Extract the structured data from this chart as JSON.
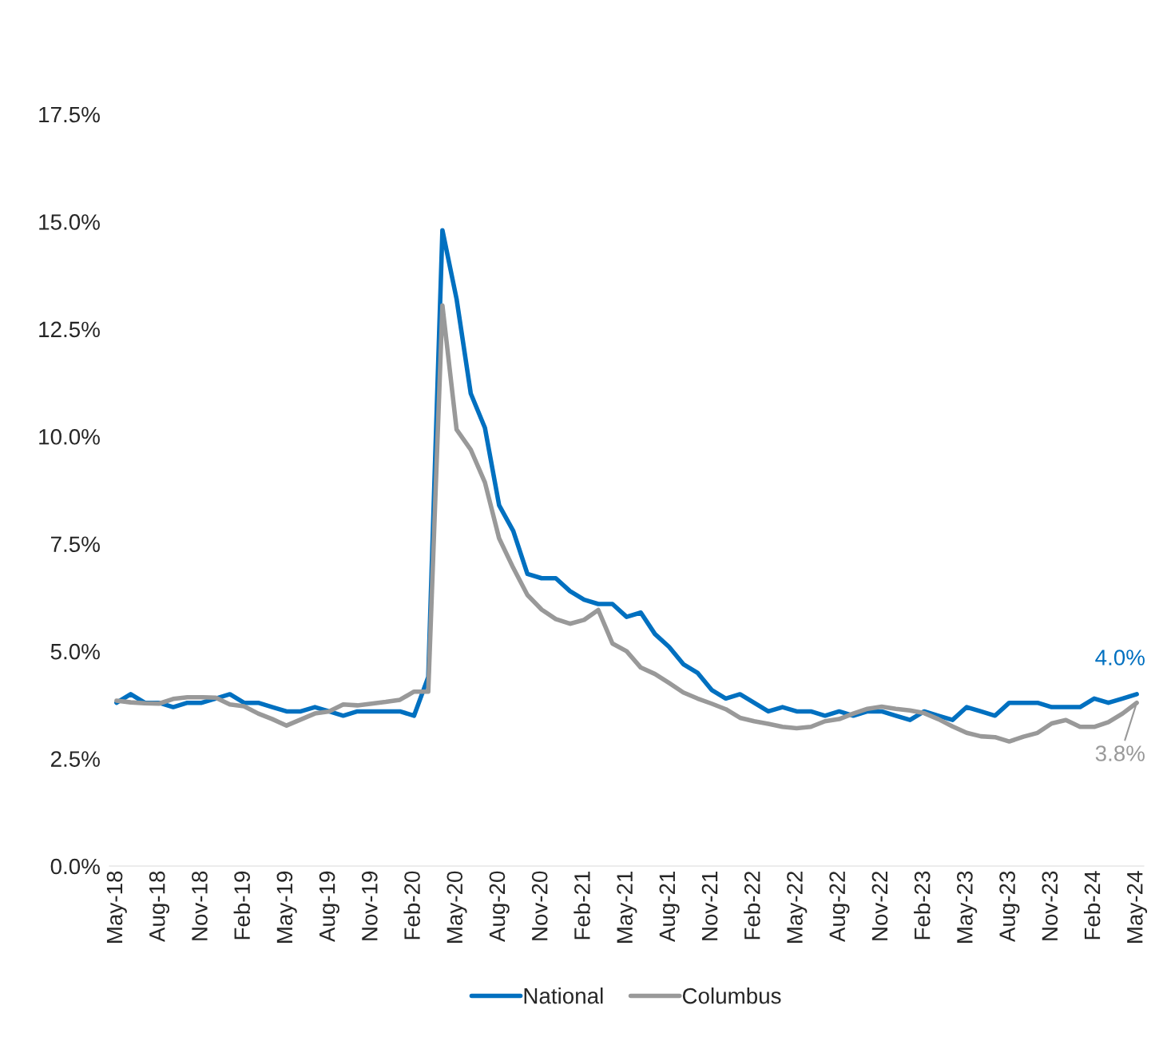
{
  "chart_data": {
    "type": "line",
    "categories": [
      "May-18",
      null,
      null,
      "Aug-18",
      null,
      null,
      "Nov-18",
      null,
      null,
      "Feb-19",
      null,
      null,
      "May-19",
      null,
      null,
      "Aug-19",
      null,
      null,
      "Nov-19",
      null,
      null,
      "Feb-20",
      null,
      null,
      "May-20",
      null,
      null,
      "Aug-20",
      null,
      null,
      "Nov-20",
      null,
      null,
      "Feb-21",
      null,
      null,
      "May-21",
      null,
      null,
      "Aug-21",
      null,
      null,
      "Nov-21",
      null,
      null,
      "Feb-22",
      null,
      null,
      "May-22",
      null,
      null,
      "Aug-22",
      null,
      null,
      "Nov-22",
      null,
      null,
      "Feb-23",
      null,
      null,
      "May-23",
      null,
      null,
      "Aug-23",
      null,
      null,
      "Nov-23",
      null,
      null,
      "Feb-24",
      null,
      null,
      "May-24"
    ],
    "series": [
      {
        "name": "National",
        "color": "#0070c0",
        "values": [
          3.8,
          4.0,
          3.8,
          3.8,
          3.7,
          3.8,
          3.8,
          3.9,
          4.0,
          3.8,
          3.8,
          3.7,
          3.6,
          3.6,
          3.7,
          3.6,
          3.5,
          3.6,
          3.6,
          3.6,
          3.6,
          3.5,
          4.4,
          14.8,
          13.2,
          11.0,
          10.2,
          8.4,
          7.8,
          6.8,
          6.7,
          6.7,
          6.4,
          6.2,
          6.1,
          6.1,
          5.8,
          5.9,
          5.4,
          5.1,
          4.7,
          4.5,
          4.1,
          3.9,
          4.0,
          3.8,
          3.6,
          3.7,
          3.6,
          3.6,
          3.5,
          3.6,
          3.5,
          3.6,
          3.6,
          3.5,
          3.4,
          3.6,
          3.5,
          3.4,
          3.7,
          3.6,
          3.5,
          3.8,
          3.8,
          3.8,
          3.7,
          3.7,
          3.7,
          3.9,
          3.8,
          3.9,
          4.0
        ]
      },
      {
        "name": "Columbus",
        "color": "#999999",
        "values": [
          3.85,
          3.81,
          3.79,
          3.78,
          3.89,
          3.93,
          3.93,
          3.92,
          3.76,
          3.72,
          3.55,
          3.42,
          3.27,
          3.41,
          3.55,
          3.6,
          3.76,
          3.74,
          3.78,
          3.82,
          3.87,
          4.06,
          4.06,
          13.05,
          10.16,
          9.69,
          8.93,
          7.63,
          6.94,
          6.31,
          5.97,
          5.75,
          5.64,
          5.73,
          5.96,
          5.18,
          5.0,
          4.62,
          4.47,
          4.26,
          4.04,
          3.9,
          3.78,
          3.65,
          3.45,
          3.37,
          3.31,
          3.24,
          3.21,
          3.24,
          3.37,
          3.42,
          3.55,
          3.66,
          3.71,
          3.66,
          3.62,
          3.56,
          3.42,
          3.25,
          3.1,
          3.02,
          3.0,
          2.9,
          3.01,
          3.1,
          3.32,
          3.4,
          3.24,
          3.24,
          3.35,
          3.55,
          3.8
        ]
      }
    ],
    "ylim": [
      0,
      17.5
    ],
    "yticks": [
      {
        "value": 0,
        "label": "0.0%"
      },
      {
        "value": 2.5,
        "label": "2.5%"
      },
      {
        "value": 5,
        "label": "5.0%"
      },
      {
        "value": 7.5,
        "label": "7.5%"
      },
      {
        "value": 10,
        "label": "10.0%"
      },
      {
        "value": 12.5,
        "label": "12.5%"
      },
      {
        "value": 15,
        "label": "15.0%"
      },
      {
        "value": 17.5,
        "label": "17.5%"
      }
    ],
    "annotations": [
      {
        "text": "4.0%",
        "x": "May-24",
        "y": 4.0
      },
      {
        "text": "3.8%",
        "x": "May-24",
        "y": 3.8
      }
    ],
    "grid": false,
    "legend": "bottom",
    "marker": "none",
    "line_style": "solid"
  }
}
